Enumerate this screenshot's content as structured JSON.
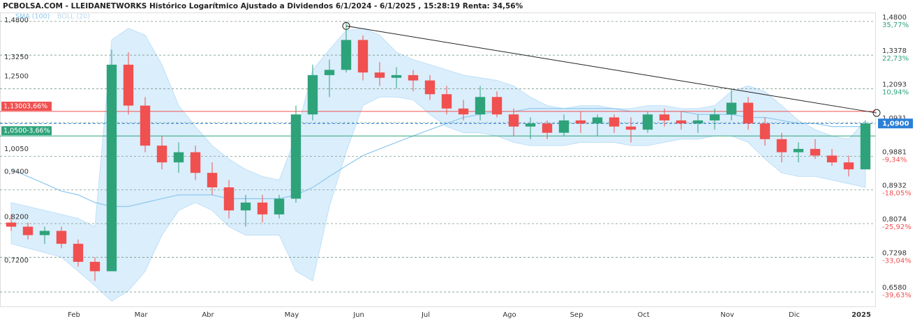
{
  "chart_data": {
    "type": "candlestick",
    "title": "PCBOLSA.COM - LLEIDANETWORKS Histórico Logarítmico Ajustado a Dividendos 6/1/2024 - 6/1/2025 , 15:28:19 Renta: 34,56%",
    "legend": [
      "SMA (100)",
      "BOLL (20)"
    ],
    "log_scale": true,
    "ylim": [
      0.63,
      1.52
    ],
    "yticks": [
      {
        "value": 1.48,
        "label": "1,4800"
      },
      {
        "value": 1.325,
        "label": "1,3250"
      },
      {
        "value": 1.25,
        "label": "1,2500"
      },
      {
        "value": 1.005,
        "label": "1,0050"
      },
      {
        "value": 0.94,
        "label": "0,9400"
      },
      {
        "value": 0.82,
        "label": "0,8200"
      },
      {
        "value": 0.72,
        "label": "0,7200"
      }
    ],
    "levels": [
      {
        "value": 1.48,
        "label": "1,4800",
        "pct_label": "35,77%"
      },
      {
        "value": 1.3378,
        "label": "1,3378",
        "pct_label": "22,73%"
      },
      {
        "value": 1.2093,
        "label": "1,2093",
        "pct_label": "10,94%"
      },
      {
        "value": 1.0931,
        "label": "1,0931"
      },
      {
        "value": 0.9881,
        "label": "0,9881",
        "pct_label": "-9,34%"
      },
      {
        "value": 0.8932,
        "label": "0,8932",
        "pct_label": "-18,05%"
      },
      {
        "value": 0.8074,
        "label": "0,8074",
        "pct_label": "-25,92%"
      },
      {
        "value": 0.7298,
        "label": "0,7298",
        "pct_label": "-33,04%"
      },
      {
        "value": 0.658,
        "label": "0,6580",
        "pct_label": "-39,63%"
      }
    ],
    "alerts": [
      {
        "value": 1.13,
        "label": "1,1300",
        "pct_label": "3,66%",
        "color": "#f0504f"
      },
      {
        "value": 1.05,
        "label": "1,0500",
        "pct_label": "-3,66%",
        "color": "#2ea37a"
      }
    ],
    "current": {
      "value": 1.09,
      "label": "1,0900",
      "color": "#2b7fd6"
    },
    "trendline": [
      1.46,
      1.125
    ],
    "up_color": "#2ea37a",
    "down_color": "#f0504f",
    "band_color": "#cfe8fb",
    "sma_color": "#8cc8ee",
    "categories": [
      null,
      null,
      null,
      null,
      "Feb",
      null,
      null,
      null,
      "Mar",
      null,
      null,
      null,
      "Abr",
      null,
      null,
      null,
      null,
      "May",
      null,
      null,
      null,
      "Jun",
      null,
      null,
      null,
      "Jul",
      null,
      null,
      null,
      null,
      "Ago",
      null,
      null,
      null,
      "Sep",
      null,
      null,
      null,
      "Oct",
      null,
      null,
      null,
      null,
      "Nov",
      null,
      null,
      null,
      "Dic",
      null,
      null,
      null,
      "2025"
    ],
    "open": [
      0.81,
      0.8,
      0.78,
      0.79,
      0.76,
      0.72,
      0.7,
      1.3,
      1.15,
      1.02,
      0.97,
      1.0,
      0.94,
      0.9,
      0.84,
      0.86,
      0.83,
      0.87,
      1.12,
      1.26,
      1.28,
      1.4,
      1.27,
      1.25,
      1.26,
      1.24,
      1.19,
      1.14,
      1.12,
      1.18,
      1.12,
      1.08,
      1.09,
      1.06,
      1.1,
      1.09,
      1.11,
      1.08,
      1.07,
      1.12,
      1.1,
      1.09,
      1.1,
      1.12,
      1.16,
      1.09,
      1.04,
      1.0,
      1.01,
      0.99,
      0.97,
      0.95
    ],
    "high": [
      0.83,
      0.81,
      0.8,
      0.8,
      0.77,
      0.73,
      1.36,
      1.35,
      1.18,
      1.05,
      1.03,
      1.02,
      0.97,
      0.92,
      0.88,
      0.88,
      0.88,
      1.15,
      1.3,
      1.32,
      1.48,
      1.42,
      1.31,
      1.29,
      1.28,
      1.26,
      1.22,
      1.17,
      1.22,
      1.2,
      1.14,
      1.11,
      1.1,
      1.12,
      1.13,
      1.12,
      1.12,
      1.11,
      1.13,
      1.14,
      1.13,
      1.12,
      1.14,
      1.21,
      1.18,
      1.11,
      1.06,
      1.03,
      1.04,
      1.01,
      0.99,
      1.1
    ],
    "low": [
      0.79,
      0.77,
      0.76,
      0.75,
      0.71,
      0.68,
      0.7,
      1.12,
      1.0,
      0.95,
      0.94,
      0.92,
      0.88,
      0.82,
      0.8,
      0.81,
      0.82,
      0.86,
      1.1,
      1.18,
      1.27,
      1.24,
      1.22,
      1.21,
      1.2,
      1.17,
      1.12,
      1.1,
      1.1,
      1.11,
      1.05,
      1.04,
      1.04,
      1.05,
      1.06,
      1.05,
      1.06,
      1.03,
      1.06,
      1.08,
      1.07,
      1.06,
      1.07,
      1.1,
      1.07,
      1.02,
      0.97,
      0.97,
      0.98,
      0.96,
      0.93,
      0.95
    ],
    "close": [
      0.8,
      0.78,
      0.79,
      0.76,
      0.72,
      0.7,
      1.3,
      1.15,
      1.02,
      0.97,
      1.0,
      0.94,
      0.9,
      0.84,
      0.86,
      0.83,
      0.87,
      1.12,
      1.26,
      1.28,
      1.4,
      1.27,
      1.25,
      1.26,
      1.24,
      1.19,
      1.14,
      1.12,
      1.18,
      1.12,
      1.08,
      1.09,
      1.06,
      1.1,
      1.09,
      1.11,
      1.08,
      1.07,
      1.12,
      1.1,
      1.09,
      1.1,
      1.12,
      1.16,
      1.09,
      1.04,
      1.0,
      1.01,
      0.99,
      0.97,
      0.95,
      1.09
    ],
    "boll_upper": [
      0.86,
      0.85,
      0.84,
      0.83,
      0.82,
      0.8,
      1.4,
      1.45,
      1.42,
      1.3,
      1.15,
      1.08,
      1.02,
      0.98,
      0.95,
      0.93,
      0.92,
      1.05,
      1.28,
      1.36,
      1.44,
      1.45,
      1.42,
      1.35,
      1.32,
      1.3,
      1.28,
      1.26,
      1.25,
      1.24,
      1.22,
      1.18,
      1.15,
      1.14,
      1.15,
      1.15,
      1.14,
      1.14,
      1.15,
      1.15,
      1.14,
      1.14,
      1.15,
      1.2,
      1.22,
      1.2,
      1.15,
      1.1,
      1.07,
      1.05,
      1.04,
      1.1
    ],
    "boll_lower": [
      0.76,
      0.75,
      0.74,
      0.73,
      0.7,
      0.67,
      0.64,
      0.66,
      0.7,
      0.78,
      0.84,
      0.86,
      0.84,
      0.8,
      0.78,
      0.78,
      0.78,
      0.7,
      0.68,
      0.85,
      1.0,
      1.15,
      1.18,
      1.18,
      1.17,
      1.12,
      1.08,
      1.06,
      1.06,
      1.05,
      1.03,
      1.02,
      1.02,
      1.02,
      1.03,
      1.03,
      1.03,
      1.02,
      1.02,
      1.03,
      1.04,
      1.04,
      1.05,
      1.05,
      1.03,
      0.98,
      0.94,
      0.93,
      0.93,
      0.92,
      0.91,
      0.9
    ],
    "sma": [
      0.95,
      0.93,
      0.91,
      0.89,
      0.88,
      0.86,
      0.85,
      0.85,
      0.86,
      0.87,
      0.88,
      0.88,
      0.88,
      0.87,
      0.87,
      0.87,
      0.87,
      0.88,
      0.9,
      0.93,
      0.96,
      0.99,
      1.01,
      1.03,
      1.05,
      1.07,
      1.09,
      1.11,
      1.12,
      1.13,
      1.13,
      1.14,
      1.14,
      1.14,
      1.14,
      1.14,
      1.14,
      1.13,
      1.13,
      1.13,
      1.13,
      1.12,
      1.12,
      1.12,
      1.11,
      1.11,
      1.1,
      1.09,
      1.09,
      1.08,
      1.08,
      1.08
    ]
  }
}
